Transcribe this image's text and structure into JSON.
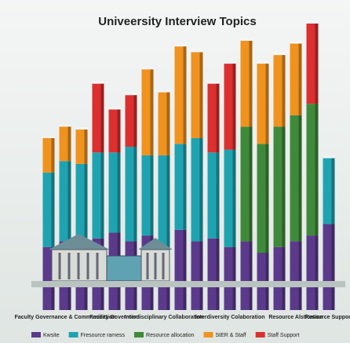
{
  "chart_data": {
    "type": "stacked-bar",
    "title": "Univeersity Interview Topics",
    "categories": [
      null,
      "Faculty Governance & Communication",
      null,
      null,
      "Facility Governtion",
      null,
      null,
      "Interdisciplinary Collaboration",
      null,
      null,
      null,
      "Interdiversity Colaboration",
      null,
      null,
      null,
      "Resource Alstication",
      null,
      "Resource Support"
    ],
    "series": [
      {
        "name": "Kwsite",
        "color": "#5b3a8c",
        "values": [
          22,
          24,
          22,
          25,
          27,
          24,
          26,
          22,
          28,
          24,
          25,
          22,
          24,
          20,
          22,
          24,
          26,
          30
        ]
      },
      {
        "name": "Fresource ramess",
        "color": "#1fa3b0",
        "values": [
          26,
          28,
          29,
          30,
          28,
          33,
          28,
          32,
          30,
          36,
          30,
          34,
          0,
          0,
          0,
          0,
          0,
          23
        ]
      },
      {
        "name": "Resource allocation",
        "color": "#3f8a3a",
        "values": [
          0,
          0,
          0,
          0,
          0,
          0,
          0,
          0,
          0,
          0,
          0,
          0,
          40,
          38,
          42,
          44,
          46,
          0
        ]
      },
      {
        "name": "StER & Staff",
        "color": "#f0921e",
        "values": [
          12,
          12,
          12,
          0,
          0,
          0,
          30,
          22,
          34,
          30,
          0,
          0,
          30,
          28,
          25,
          25,
          0,
          0
        ]
      },
      {
        "name": "Staff Support",
        "color": "#dc2f2f",
        "values": [
          0,
          0,
          0,
          24,
          15,
          18,
          0,
          0,
          0,
          0,
          24,
          30,
          0,
          0,
          0,
          0,
          28,
          0
        ]
      }
    ],
    "ylim": [
      0,
      100
    ]
  }
}
